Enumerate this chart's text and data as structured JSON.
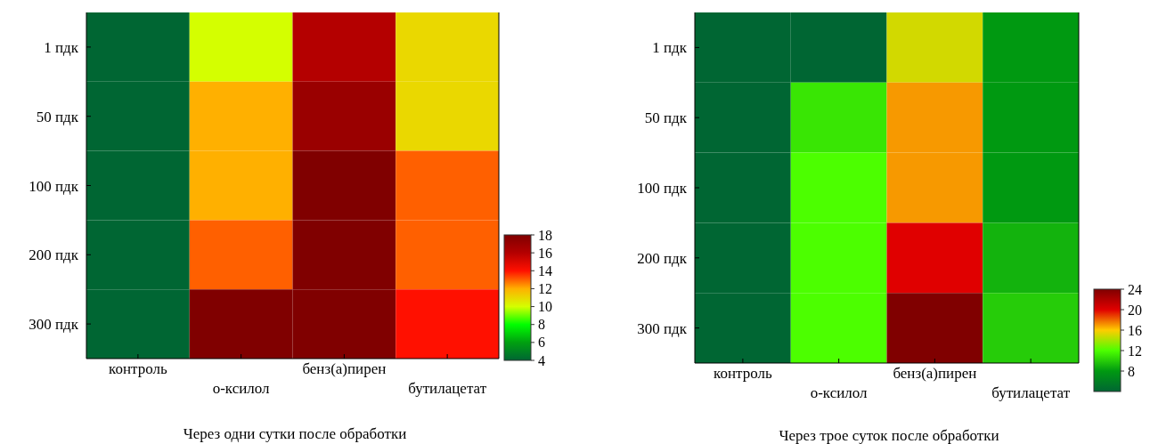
{
  "chart_data": [
    {
      "type": "heatmap",
      "title": "Через одни сутки после обработки",
      "categories": [
        "контроль",
        "о-ксилол",
        "бенз(а)пирен",
        "бутилацетат"
      ],
      "y_categories": [
        "1 пдк",
        "50 пдк",
        "100 пдк",
        "200 пдк",
        "300 пдк"
      ],
      "cells": [
        [
          4,
          10,
          16,
          11
        ],
        [
          4,
          12,
          17,
          11
        ],
        [
          4,
          12,
          18,
          13
        ],
        [
          4,
          13,
          18,
          13
        ],
        [
          4,
          18,
          18,
          14
        ]
      ],
      "clim": [
        4,
        18
      ],
      "cticks": [
        4,
        6,
        8,
        10,
        12,
        14,
        16,
        18
      ],
      "colors": [
        "#006633",
        "#00a010",
        "#00ff00",
        "#d4ff00",
        "#ffb000",
        "#ff1000",
        "#b40000",
        "#800000"
      ]
    },
    {
      "type": "heatmap",
      "title": "Через трое суток после обработки",
      "categories": [
        "контроль",
        "о-ксилол",
        "бенз(а)пирен",
        "бутилацетат"
      ],
      "y_categories": [
        "1 пдк",
        "50 пдк",
        "100 пдк",
        "200 пдк",
        "300 пдк"
      ],
      "cells": [
        [
          4,
          4,
          15,
          8
        ],
        [
          4,
          11,
          17,
          8
        ],
        [
          4,
          12,
          17,
          8
        ],
        [
          4,
          12,
          20,
          9
        ],
        [
          4,
          12,
          24,
          10
        ]
      ],
      "clim": [
        4,
        24
      ],
      "cticks": [
        8,
        12,
        16,
        20,
        24
      ],
      "colors": [
        "#006633",
        "#009911",
        "#4cff00",
        "#ffcc00",
        "#e00000",
        "#800000"
      ]
    }
  ]
}
